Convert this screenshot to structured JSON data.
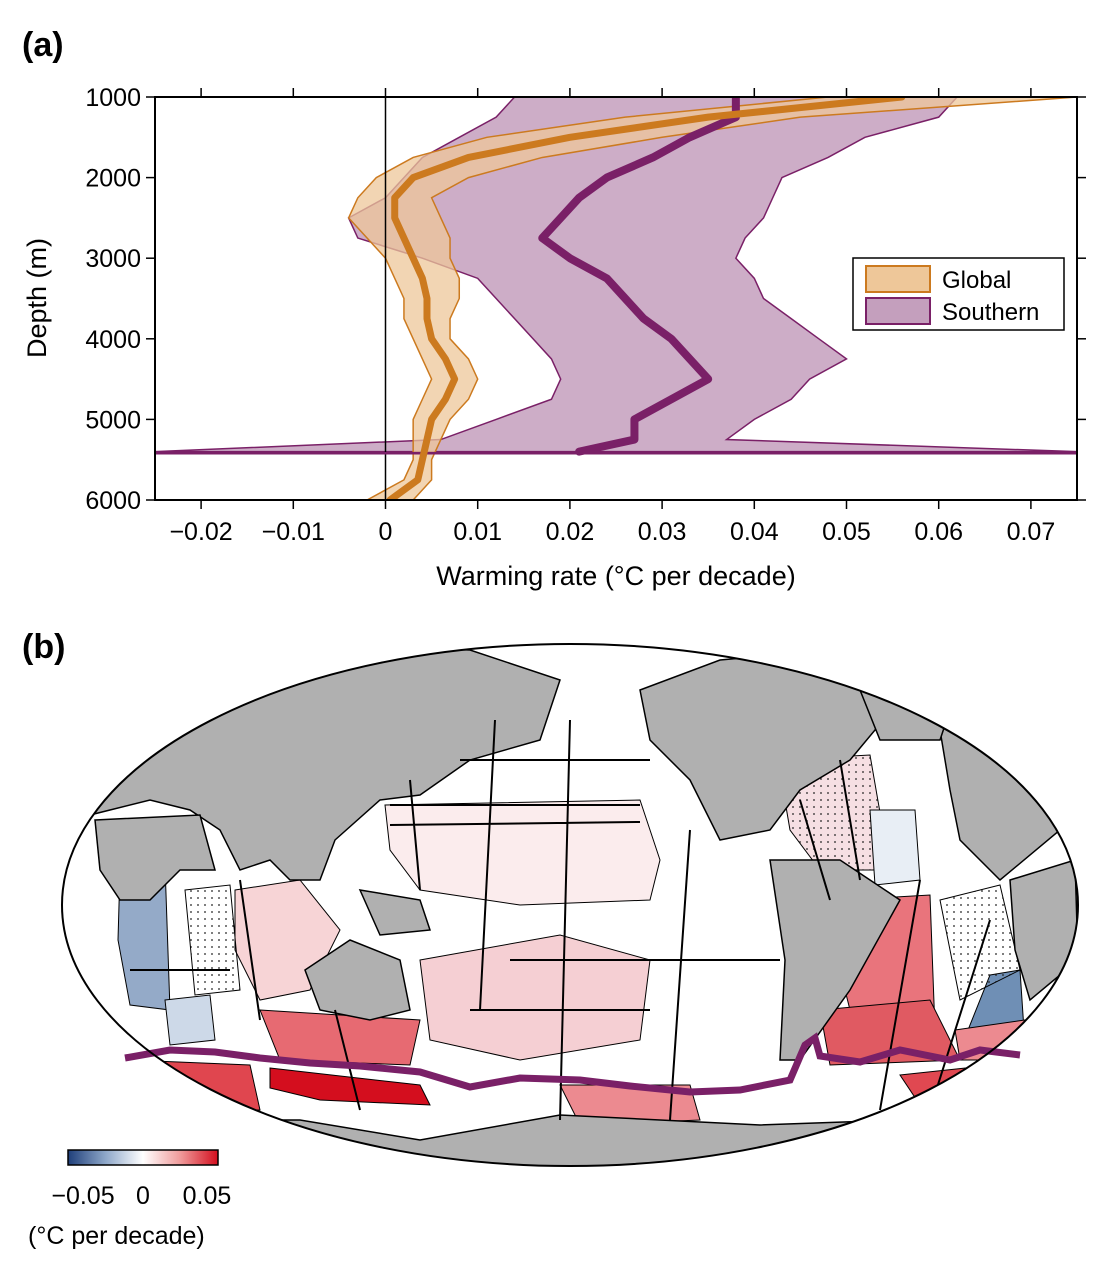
{
  "panel_a": {
    "label": "(a)"
  },
  "panel_b": {
    "label": "(b)"
  },
  "chart_data": [
    {
      "type": "line",
      "xlabel": "Warming rate (°C per decade)",
      "ylabel": "Depth (m)",
      "xlim": [
        -0.025,
        0.075
      ],
      "ylim": [
        6000,
        1000
      ],
      "xticks": [
        -0.02,
        -0.01,
        0,
        0.01,
        0.02,
        0.03,
        0.04,
        0.05,
        0.06,
        0.07
      ],
      "xtick_labels": [
        "−0.02",
        "−0.01",
        "0",
        "0.01",
        "0.02",
        "0.03",
        "0.04",
        "0.05",
        "0.06",
        "0.07"
      ],
      "yticks": [
        1000,
        2000,
        3000,
        4000,
        5000,
        6000
      ],
      "ytick_labels": [
        "1000",
        "2000",
        "3000",
        "4000",
        "5000",
        "6000"
      ],
      "legend_position": "right",
      "grid": false,
      "series": [
        {
          "name": "Global",
          "color": "#cc7a1f",
          "fill": "#eec799",
          "depth": [
            1000,
            1250,
            1500,
            1750,
            2000,
            2250,
            2500,
            2750,
            3000,
            3250,
            3500,
            3750,
            4000,
            4250,
            4500,
            4750,
            5000,
            5250,
            5500,
            5750,
            6000
          ],
          "mean": [
            0.056,
            0.035,
            0.02,
            0.009,
            0.003,
            0.001,
            0.001,
            0.002,
            0.003,
            0.004,
            0.0045,
            0.0045,
            0.005,
            0.0065,
            0.0075,
            0.0065,
            0.005,
            0.0045,
            0.004,
            0.0035,
            0.0005
          ],
          "lower": [
            0.048,
            0.026,
            0.011,
            0.003,
            -0.001,
            -0.003,
            -0.004,
            -0.002,
            0.0,
            0.001,
            0.002,
            0.002,
            0.003,
            0.004,
            0.005,
            0.004,
            0.003,
            0.003,
            0.003,
            0.002,
            -0.002
          ],
          "upper": [
            0.075,
            0.045,
            0.03,
            0.017,
            0.009,
            0.005,
            0.006,
            0.007,
            0.007,
            0.008,
            0.008,
            0.007,
            0.007,
            0.009,
            0.01,
            0.009,
            0.007,
            0.006,
            0.005,
            0.005,
            0.003
          ]
        },
        {
          "name": "Southern",
          "color": "#7a2067",
          "fill": "#c49fbd",
          "depth": [
            1000,
            1250,
            1500,
            1750,
            2000,
            2250,
            2500,
            2750,
            3000,
            3250,
            3500,
            3750,
            4000,
            4250,
            4500,
            4750,
            5000,
            5250,
            5400
          ],
          "mean": [
            0.038,
            0.038,
            0.033,
            0.029,
            0.024,
            0.021,
            0.019,
            0.017,
            0.02,
            0.024,
            0.026,
            0.028,
            0.031,
            0.033,
            0.035,
            0.031,
            0.027,
            0.027,
            0.021
          ],
          "lower": [
            0.014,
            0.012,
            0.008,
            0.004,
            0.002,
            0.0,
            -0.004,
            -0.003,
            0.004,
            0.01,
            0.012,
            0.014,
            0.016,
            0.018,
            0.019,
            0.018,
            0.012,
            0.006,
            -0.025
          ],
          "upper": [
            0.062,
            0.06,
            0.052,
            0.048,
            0.043,
            0.042,
            0.041,
            0.039,
            0.038,
            0.04,
            0.041,
            0.044,
            0.047,
            0.05,
            0.046,
            0.044,
            0.04,
            0.037,
            0.075
          ]
        }
      ]
    },
    {
      "type": "heatmap",
      "colorbar": {
        "min": -0.05,
        "max": 0.05,
        "tick_labels": [
          "−0.05",
          "0",
          "0.05"
        ],
        "unit": "(°C per decade)",
        "colors": [
          "#1f3f7a",
          "#ffffff",
          "#d40e1e"
        ]
      }
    }
  ]
}
